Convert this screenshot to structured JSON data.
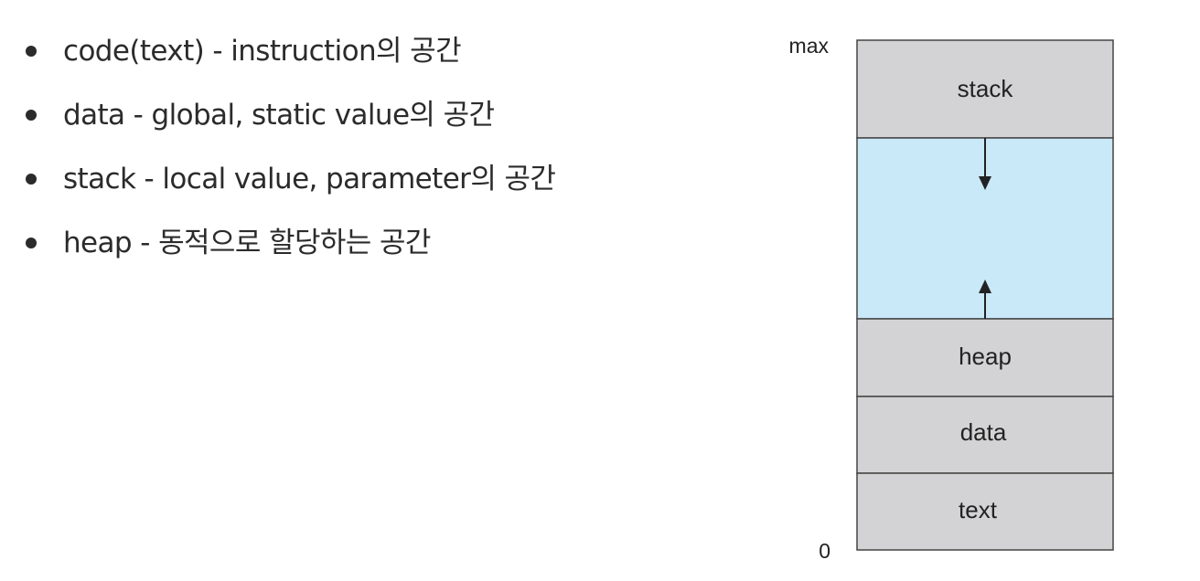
{
  "bullets": [
    {
      "text": "code(text) - instruction의 공간"
    },
    {
      "text": "data - global, static value의 공간"
    },
    {
      "text": "stack - local value, parameter의 공간"
    },
    {
      "text": "heap - 동적으로 할당하는 공간"
    }
  ],
  "diagram": {
    "axis_top_label": "max",
    "axis_bottom_label": "0",
    "segments": [
      {
        "label": "stack",
        "color": "#d3d3d5"
      },
      {
        "label": "",
        "color": "#c9e8f8"
      },
      {
        "label": "heap",
        "color": "#d3d3d5"
      },
      {
        "label": "data",
        "color": "#d3d3d5"
      },
      {
        "label": "text",
        "color": "#d3d3d5"
      }
    ],
    "border_color": "#444444",
    "arrow_color": "#222222"
  }
}
